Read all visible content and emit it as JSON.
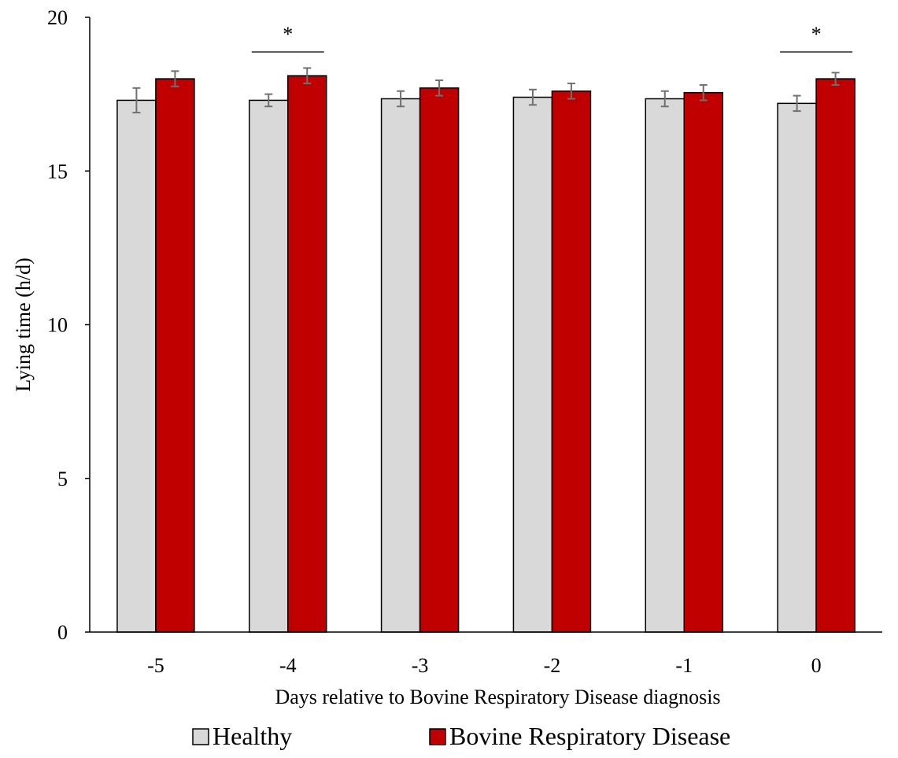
{
  "chart_data": {
    "type": "bar",
    "title": "",
    "xlabel": "Days relative to Bovine Respiratory Disease diagnosis",
    "ylabel": "Lying time (h/d)",
    "ylim": [
      0,
      20
    ],
    "yticks": [
      0,
      5,
      10,
      15,
      20
    ],
    "grid": false,
    "legend_position": "bottom",
    "categories": [
      "-5",
      "-4",
      "-3",
      "-2",
      "-1",
      "0"
    ],
    "series": [
      {
        "name": "Healthy",
        "color": "#d9d9d9",
        "values": [
          17.3,
          17.3,
          17.35,
          17.4,
          17.35,
          17.2
        ],
        "errors": [
          0.4,
          0.2,
          0.25,
          0.25,
          0.25,
          0.25
        ]
      },
      {
        "name": "Bovine Respiratory Disease",
        "color": "#c00000",
        "values": [
          18.0,
          18.1,
          17.7,
          17.6,
          17.55,
          18.0
        ],
        "errors": [
          0.25,
          0.25,
          0.25,
          0.25,
          0.25,
          0.2
        ]
      }
    ],
    "annotations": [
      {
        "category_index": 1,
        "text": "*"
      },
      {
        "category_index": 5,
        "text": "*"
      }
    ]
  }
}
